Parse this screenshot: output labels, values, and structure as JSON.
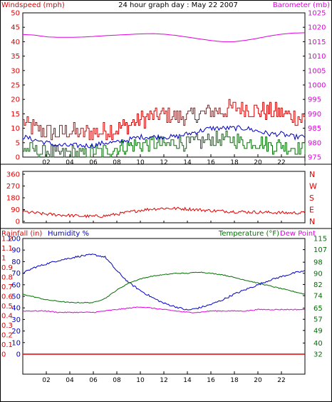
{
  "header": {
    "left_label": "Windspeed (mph)",
    "title": "24 hour graph day : May 22 2007",
    "right_label": "Barometer (mb)"
  },
  "panel2": {
    "right_label_letters": [
      "N",
      "W",
      "S",
      "E",
      "N"
    ]
  },
  "panel3": {
    "rain_label": "Rainfall (in)",
    "humidity_label": "Humidity %",
    "temp_label": "Temperature (°F)",
    "dew_label": "Dew Point"
  },
  "colors": {
    "wind_speed": "#e00000",
    "wind_gust": "#e00000",
    "wind_avg": "#007000",
    "wind_avg2": "#0000c0",
    "barometer": "#e000e0",
    "direction": "#e00000",
    "humidity": "#0000c0",
    "temperature": "#007000",
    "dewpoint": "#e000e0",
    "rainfall": "#e00000",
    "grid": "#000000",
    "frame": "#000000"
  },
  "chart_data": [
    {
      "type": "line",
      "title": "24 hour graph day : May 22 2007",
      "xlabel": "",
      "x_ticks": [
        "02",
        "04",
        "06",
        "08",
        "10",
        "12",
        "14",
        "16",
        "18",
        "20",
        "22"
      ],
      "ylabel_left": "Windspeed (mph)",
      "ylim_left": [
        0,
        50
      ],
      "yticks_left": [
        0,
        5,
        10,
        15,
        20,
        25,
        30,
        35,
        40,
        45,
        50
      ],
      "ylabel_right": "Barometer (mb)",
      "ylim_right": [
        975,
        1025
      ],
      "yticks_right": [
        975,
        980,
        985,
        990,
        995,
        1000,
        1005,
        1010,
        1015,
        1020,
        1025
      ],
      "series": [
        {
          "name": "",
          "axis": "left",
          "color": "#e00000",
          "x": [
            0,
            1,
            2,
            3,
            4,
            5,
            6,
            7,
            8,
            9,
            10,
            11,
            12,
            13,
            14,
            15,
            16,
            17,
            18,
            19,
            20,
            21,
            22,
            23,
            24
          ],
          "values": [
            12,
            10,
            9,
            8,
            9,
            8,
            9,
            9,
            10,
            11,
            13,
            14,
            15,
            14,
            14,
            15,
            16,
            16,
            17,
            17,
            16,
            16,
            15,
            14,
            13
          ]
        },
        {
          "name": "",
          "axis": "left",
          "color": "#0000c0",
          "x": [
            0,
            1,
            2,
            3,
            4,
            5,
            6,
            7,
            8,
            9,
            10,
            11,
            12,
            13,
            14,
            15,
            16,
            17,
            18,
            19,
            20,
            21,
            22,
            23,
            24
          ],
          "values": [
            7,
            6,
            5,
            4,
            4,
            4,
            4,
            5,
            5,
            6,
            7,
            7,
            7,
            7,
            8,
            9,
            10,
            10,
            10,
            10,
            9,
            8,
            8,
            7,
            7
          ]
        },
        {
          "name": "",
          "axis": "left",
          "color": "#007000",
          "x": [
            0,
            1,
            2,
            3,
            4,
            5,
            6,
            7,
            8,
            9,
            10,
            11,
            12,
            13,
            14,
            15,
            16,
            17,
            18,
            19,
            20,
            21,
            22,
            23,
            24
          ],
          "values": [
            3,
            2,
            2,
            1,
            2,
            1,
            2,
            2,
            3,
            4,
            4,
            5,
            4,
            5,
            5,
            5,
            6,
            6,
            6,
            5,
            5,
            4,
            4,
            3,
            3
          ]
        },
        {
          "name": "",
          "axis": "right",
          "color": "#e000e0",
          "x": [
            0,
            1,
            2,
            3,
            4,
            5,
            6,
            7,
            8,
            9,
            10,
            11,
            12,
            13,
            14,
            15,
            16,
            17,
            18,
            19,
            20,
            21,
            22,
            23,
            24
          ],
          "values": [
            1017.5,
            1017.3,
            1016.7,
            1016.5,
            1016.5,
            1016.6,
            1016.8,
            1017.1,
            1017.3,
            1017.5,
            1017.7,
            1017.8,
            1017.6,
            1017.2,
            1016.6,
            1016.0,
            1015.4,
            1015.0,
            1015.0,
            1015.5,
            1016.2,
            1017.0,
            1017.6,
            1018.0,
            1018.1
          ]
        }
      ]
    },
    {
      "type": "line",
      "xlabel": "",
      "ylabel_left": "",
      "ylim_left": [
        0,
        360
      ],
      "yticks_left": [
        0,
        90,
        180,
        270,
        360
      ],
      "ylabel_right": "",
      "right_tick_labels": [
        "N",
        "W",
        "S",
        "E",
        "N"
      ],
      "series": [
        {
          "name": "",
          "color": "#e00000",
          "x": [
            0,
            1,
            2,
            3,
            4,
            5,
            6,
            7,
            8,
            9,
            10,
            11,
            12,
            13,
            14,
            15,
            16,
            17,
            18,
            19,
            20,
            21,
            22,
            23,
            24
          ],
          "values": [
            75,
            65,
            55,
            50,
            45,
            40,
            38,
            42,
            55,
            70,
            85,
            95,
            100,
            98,
            95,
            88,
            82,
            78,
            75,
            72,
            70,
            68,
            66,
            65,
            65
          ]
        }
      ]
    },
    {
      "type": "line",
      "x_ticks": [
        "02",
        "04",
        "06",
        "08",
        "10",
        "12",
        "14",
        "16",
        "18",
        "20",
        "22"
      ],
      "ylabel_left": "Rainfall (in)",
      "ylim_left_rain": [
        0,
        1.2
      ],
      "yticks_left_rain": [
        0,
        0.1,
        0.2,
        0.3,
        0.4,
        0.5,
        0.6,
        0.7,
        0.8,
        0.9,
        1.0,
        1.1,
        1.2
      ],
      "ylabel_left2": "Humidity %",
      "ylim_left_hum": [
        0,
        100
      ],
      "yticks_left_hum": [
        0,
        10,
        20,
        30,
        40,
        50,
        60,
        70,
        80,
        90,
        100
      ],
      "ylabel_right": "Temperature (°F)",
      "ylabel_right2": "Dew Point",
      "ylim_right": [
        32,
        115
      ],
      "yticks_right": [
        32,
        40,
        49,
        57,
        65,
        74,
        82,
        90,
        98,
        107,
        115
      ],
      "series": [
        {
          "name": "",
          "axis": "humidity",
          "color": "#0000c0",
          "x": [
            0,
            1,
            2,
            3,
            4,
            5,
            6,
            7,
            8,
            9,
            10,
            11,
            12,
            13,
            14,
            15,
            16,
            17,
            18,
            19,
            20,
            21,
            22,
            23,
            24
          ],
          "values": [
            70,
            75,
            78,
            81,
            83,
            85,
            86,
            84,
            72,
            62,
            55,
            49,
            44,
            41,
            38,
            40,
            43,
            47,
            52,
            56,
            60,
            64,
            67,
            70,
            72
          ]
        },
        {
          "name": "",
          "axis": "temperature",
          "color": "#007000",
          "x": [
            0,
            1,
            2,
            3,
            4,
            5,
            6,
            7,
            8,
            9,
            10,
            11,
            12,
            13,
            14,
            15,
            16,
            17,
            18,
            19,
            20,
            21,
            22,
            23,
            24
          ],
          "values": [
            75,
            73,
            71,
            70,
            69,
            69,
            69,
            72,
            78,
            83,
            86,
            88,
            89,
            90,
            90,
            91,
            90,
            89,
            87,
            85,
            83,
            81,
            79,
            77,
            75
          ]
        },
        {
          "name": "",
          "axis": "temperature",
          "color": "#e000e0",
          "x": [
            0,
            1,
            2,
            3,
            4,
            5,
            6,
            7,
            8,
            9,
            10,
            11,
            12,
            13,
            14,
            15,
            16,
            17,
            18,
            19,
            20,
            21,
            22,
            23,
            24
          ],
          "values": [
            63,
            63,
            63,
            62,
            62,
            62,
            62,
            63,
            64,
            65,
            66,
            65,
            64,
            63,
            62,
            62,
            63,
            63,
            63,
            63,
            64,
            64,
            64,
            64,
            64
          ]
        },
        {
          "name": "",
          "axis": "rain",
          "color": "#e00000",
          "x": [
            0,
            24
          ],
          "values": [
            0,
            0
          ]
        }
      ]
    }
  ]
}
